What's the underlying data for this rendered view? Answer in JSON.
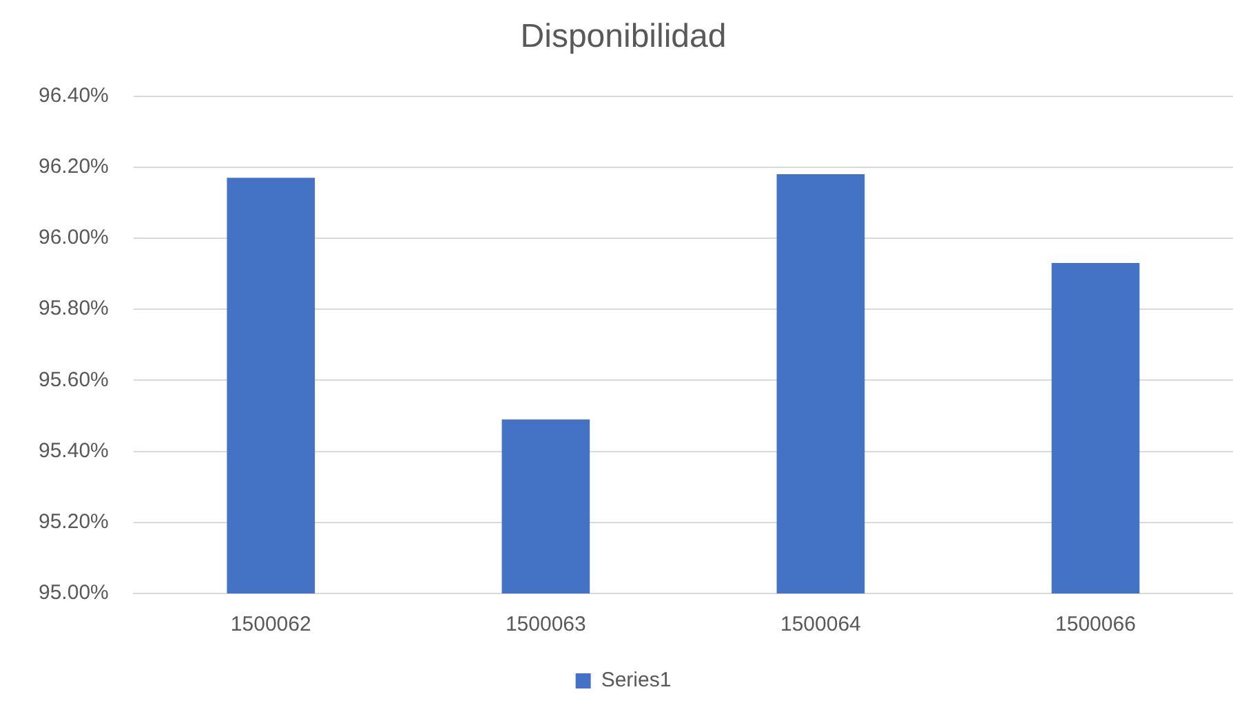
{
  "chart_data": {
    "type": "bar",
    "title": "Disponibilidad",
    "categories": [
      "1500062",
      "1500063",
      "1500064",
      "1500066"
    ],
    "series": [
      {
        "name": "Series1",
        "color": "#4472c4",
        "values": [
          96.17,
          95.49,
          96.18,
          95.93
        ]
      }
    ],
    "ylim": [
      95,
      96.4
    ],
    "yticks": [
      {
        "value": 95,
        "label": "95.00%"
      },
      {
        "value": 95.2,
        "label": "95.20%"
      },
      {
        "value": 95.4,
        "label": "95.40%"
      },
      {
        "value": 95.6,
        "label": "95.60%"
      },
      {
        "value": 95.8,
        "label": "95.80%"
      },
      {
        "value": 96,
        "label": "96.00%"
      },
      {
        "value": 96.2,
        "label": "96.20%"
      },
      {
        "value": 96.4,
        "label": "96.40%"
      }
    ],
    "grid": "y",
    "legend": "bottom"
  }
}
